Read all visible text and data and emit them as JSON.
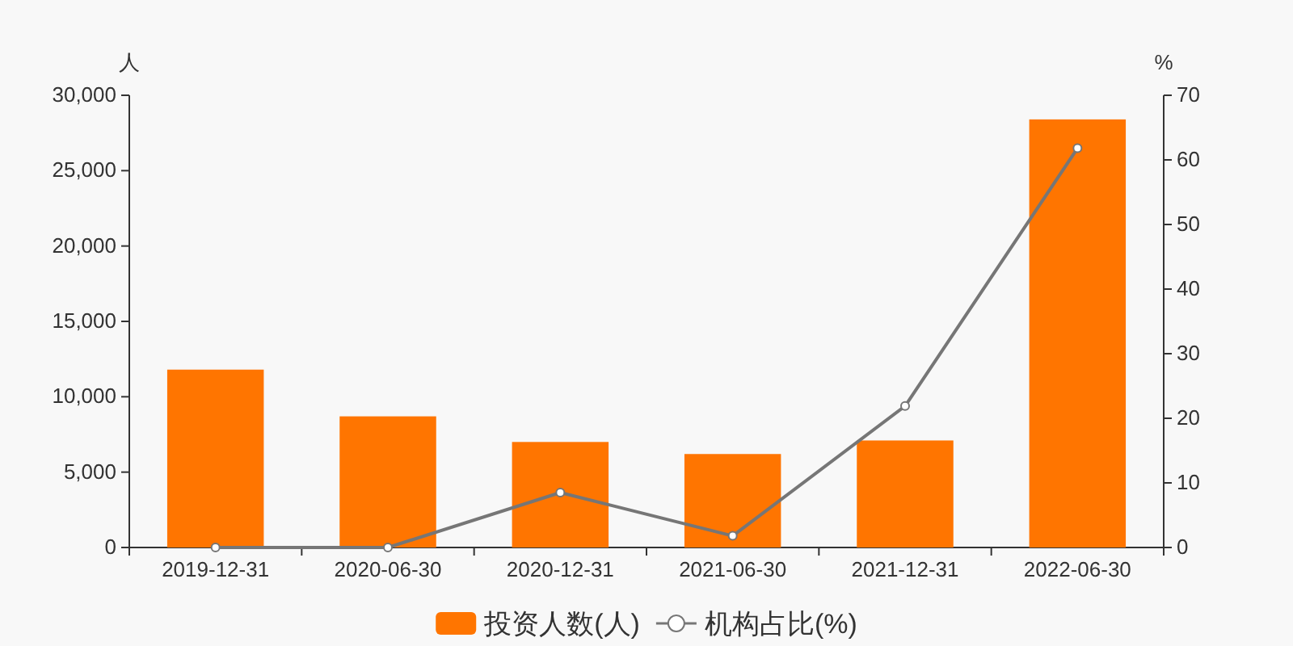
{
  "chart_data": {
    "type": "bar",
    "ylabel": "人",
    "y2label": "%",
    "categories": [
      "2019-12-31",
      "2020-06-30",
      "2020-12-31",
      "2021-06-30",
      "2021-12-31",
      "2022-06-30"
    ],
    "series": [
      {
        "name": "投资人数(人)",
        "color": "#ff7500",
        "values": [
          11800,
          8700,
          7000,
          6200,
          7100,
          28400
        ]
      },
      {
        "name": "机构占比(%)",
        "type": "line",
        "axis": "y2",
        "color": "#767676",
        "marker": "circle",
        "values": [
          0,
          0,
          8.5,
          1.8,
          21.9,
          61.8
        ]
      }
    ],
    "ylim": [
      0,
      30000
    ],
    "yticks": [
      {
        "value": 0,
        "label": "0"
      },
      {
        "value": 5000,
        "label": "5,000"
      },
      {
        "value": 10000,
        "label": "10,000"
      },
      {
        "value": 15000,
        "label": "15,000"
      },
      {
        "value": 20000,
        "label": "20,000"
      },
      {
        "value": 25000,
        "label": "25,000"
      },
      {
        "value": 30000,
        "label": "30,000"
      }
    ],
    "y2lim": [
      0,
      70
    ],
    "y2ticks": [
      0,
      10,
      20,
      30,
      40,
      50,
      60,
      70
    ],
    "grid": false,
    "legend": "bottom"
  }
}
